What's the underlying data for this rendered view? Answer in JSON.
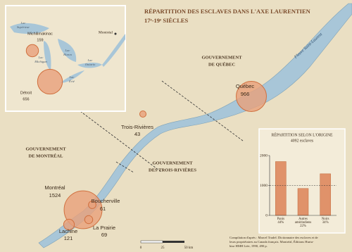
{
  "title": [
    "RÉPARTITION DES ESCLAVES DANS L'AXE LAURENTIEN",
    "17ᵉ-19ᵉ SIÈCLES"
  ],
  "regions": [
    {
      "lines": [
        "GOUVERNEMENT",
        "DE QUÉBEC"
      ]
    },
    {
      "lines": [
        "GOUVERNEMENT",
        "DE MONTRÉAL"
      ]
    },
    {
      "lines": [
        "GOUVERNEMENT",
        "DES TROIS-RIVIÈRES"
      ]
    }
  ],
  "river": "Fleuve Saint-Laurent",
  "places": [
    {
      "name": "Québec",
      "count": 966
    },
    {
      "name": "Trois-Rivières",
      "count": 43
    },
    {
      "name": "Montréal",
      "count": 1524
    },
    {
      "name": "Boucherville",
      "count": 61
    },
    {
      "name": "La Prairie",
      "count": 69
    },
    {
      "name": "Lachine",
      "count": 121
    }
  ],
  "inset": {
    "lakes": [
      {
        "lines": [
          "Lac",
          "Supérieur"
        ]
      },
      {
        "lines": [
          "Lac",
          "Michigan"
        ]
      },
      {
        "lines": [
          "Lac",
          "Huron"
        ]
      },
      {
        "lines": [
          "Lac",
          "Ontario"
        ]
      },
      {
        "lines": [
          "Lac",
          "Érié"
        ]
      }
    ],
    "places": [
      {
        "name": "Michilimakinac",
        "count": 159
      },
      {
        "name": "Détroit",
        "count": 656
      }
    ],
    "city": "Montréal"
  },
  "chart_data": {
    "type": "bar",
    "title": "RÉPARTITION SELON L'ORIGINE",
    "subtitle": "4092 esclaves",
    "categories": [
      [
        "Panis"
      ],
      [
        "Autres",
        "amérindiens"
      ],
      [
        "Noirs"
      ]
    ],
    "share_labels": [
      "44%",
      "22%",
      "34%"
    ],
    "values": [
      1800,
      900,
      1391
    ],
    "color": "#e0926a",
    "ylim": [
      0,
      2000
    ],
    "yticks": [
      0,
      1000,
      2000
    ],
    "dashed_grid_at": 1000
  },
  "scale": {
    "ticks": [
      "0",
      "25",
      "50 km"
    ]
  },
  "source": [
    "Compilation d'après : Marcel Trudel. Dictionnaire des esclaves et de",
    "leurs propriétaires au Canada français. Montréal, Éditions Hurtu-",
    "bise HMH Ltée, 1990, 490 p."
  ]
}
